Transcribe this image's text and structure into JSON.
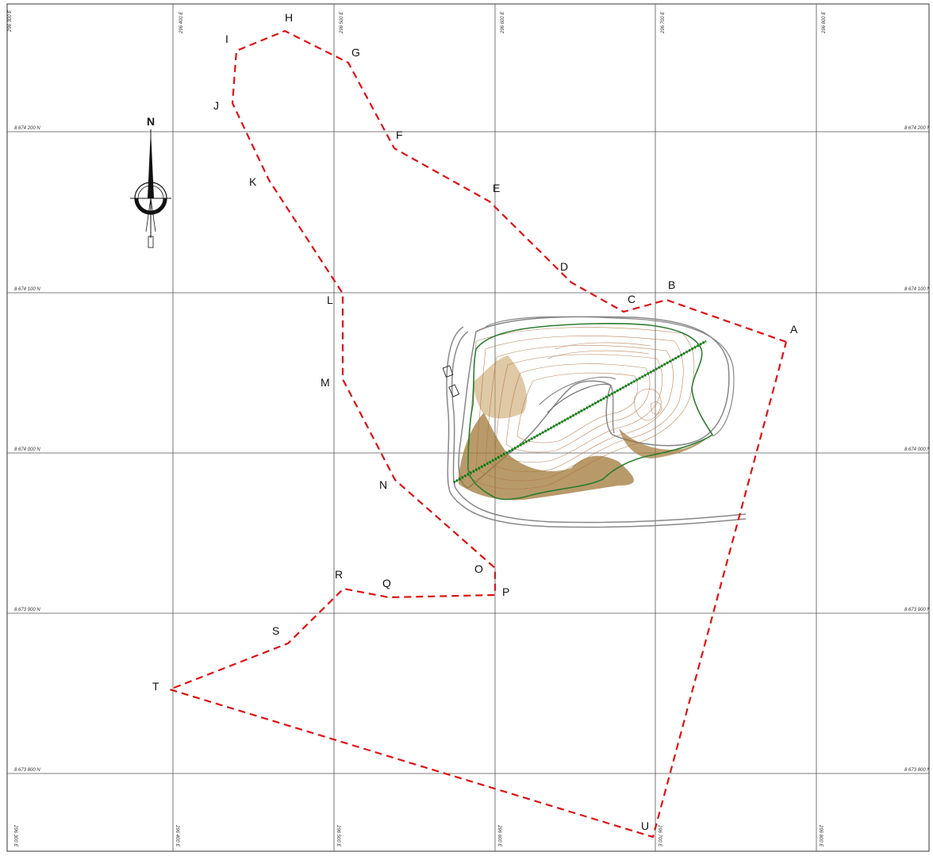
{
  "map": {
    "north_label": "N",
    "easting_labels": [
      "296 300 E",
      "296 400 E",
      "296 500 E",
      "296 600 E",
      "296 700 E",
      "296 800 E"
    ],
    "northing_labels": [
      "8 674 200 N",
      "8 674 100 N",
      "8 674 000 N",
      "8 673 900 N",
      "8 673 800 N"
    ],
    "point_labels": [
      "H",
      "I",
      "G",
      "J",
      "F",
      "E",
      "K",
      "D",
      "B",
      "C",
      "L",
      "A",
      "M",
      "N",
      "O",
      "R",
      "Q",
      "P",
      "S",
      "T",
      "U"
    ],
    "colors": {
      "boundary": "#e01010",
      "axis_line": "#22aa22",
      "contours": "#b07040",
      "fill": "#a07838",
      "pit_outline": "#2e7d32",
      "grid": "#555555"
    },
    "icons": [
      "north-arrow-icon"
    ]
  }
}
